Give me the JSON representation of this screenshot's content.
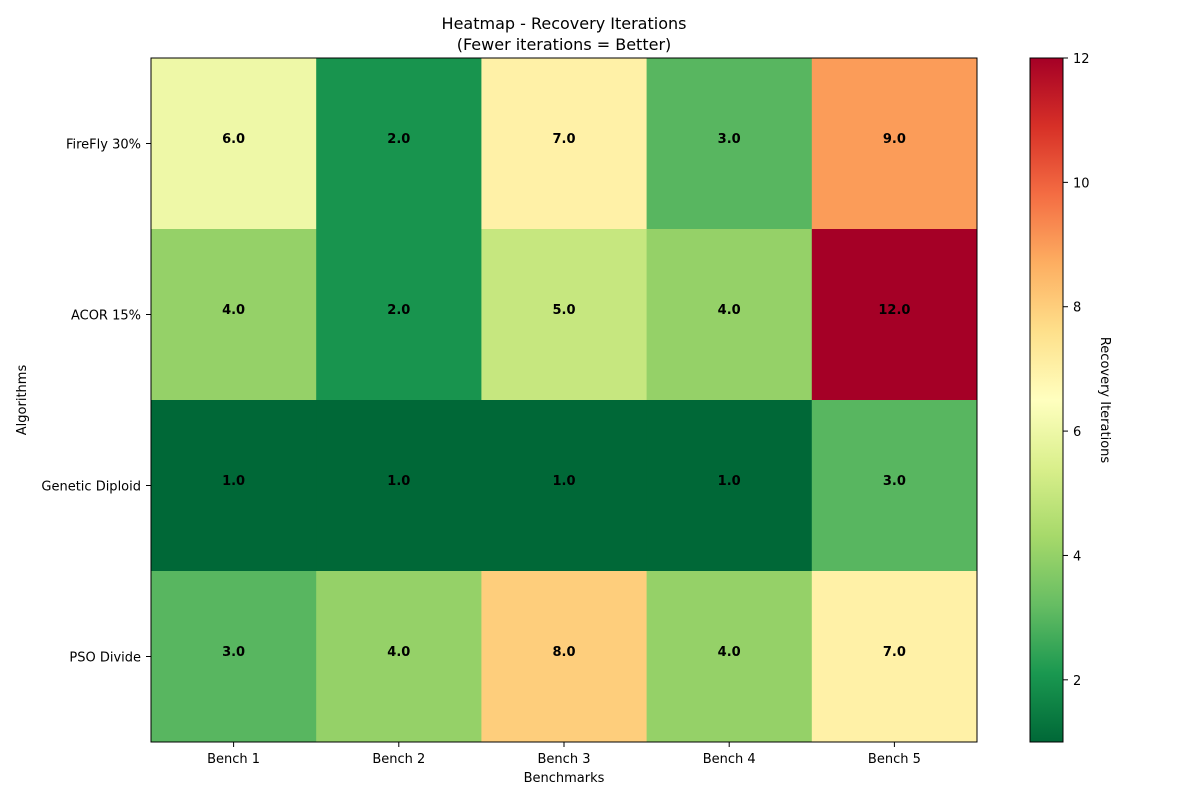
{
  "chart_data": {
    "type": "heatmap",
    "title": "Heatmap - Recovery Iterations",
    "subtitle": "(Fewer iterations = Better)",
    "xlabel": "Benchmarks",
    "ylabel": "Algorithms",
    "x_categories": [
      "Bench 1",
      "Bench 2",
      "Bench 3",
      "Bench 4",
      "Bench 5"
    ],
    "y_categories": [
      "FireFly 30%",
      "ACOR 15%",
      "Genetic Diploid",
      "PSO Divide"
    ],
    "values": [
      [
        6,
        2,
        7,
        3,
        9
      ],
      [
        4,
        2,
        5,
        4,
        12
      ],
      [
        1,
        1,
        1,
        1,
        3
      ],
      [
        3,
        4,
        8,
        4,
        7
      ]
    ],
    "cell_labels": [
      [
        "6.0",
        "2.0",
        "7.0",
        "3.0",
        "9.0"
      ],
      [
        "4.0",
        "2.0",
        "5.0",
        "4.0",
        "12.0"
      ],
      [
        "1.0",
        "1.0",
        "1.0",
        "1.0",
        "3.0"
      ],
      [
        "3.0",
        "4.0",
        "8.0",
        "4.0",
        "7.0"
      ]
    ],
    "colormap": "RdYlGn_r",
    "colormap_stops": [
      "#006837",
      "#1a9850",
      "#66bd63",
      "#a6d96a",
      "#d9ef8b",
      "#ffffbf",
      "#fee08b",
      "#fdae61",
      "#f46d43",
      "#d73027",
      "#a50026"
    ],
    "vmin": 1,
    "vmax": 12,
    "colorbar": {
      "label": "Recovery Iterations",
      "ticks": [
        2,
        4,
        6,
        8,
        10,
        12
      ],
      "tick_labels": [
        "2",
        "4",
        "6",
        "8",
        "10",
        "12"
      ]
    }
  }
}
